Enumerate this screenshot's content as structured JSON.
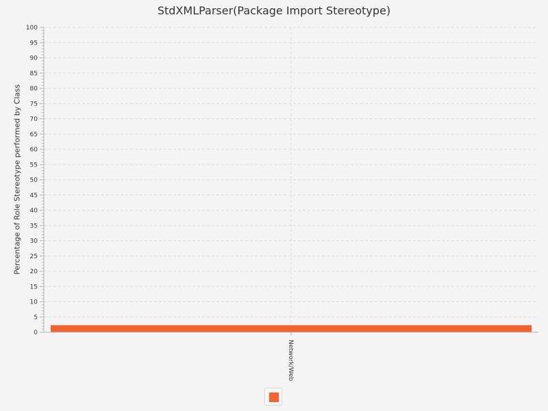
{
  "chart_data": {
    "type": "bar",
    "title": "StdXMLParser(Package Import Stereotype)",
    "xlabel": "",
    "ylabel": "Percentage of Role Stereotype performed by Class",
    "categories": [
      "Network/Web"
    ],
    "series": [
      {
        "values": [
          2.3
        ],
        "color": "#f26331"
      }
    ],
    "ylim": [
      0,
      100
    ],
    "y_major_step": 5,
    "y_minor_step": 1,
    "grid": true,
    "legend": "bottom"
  }
}
